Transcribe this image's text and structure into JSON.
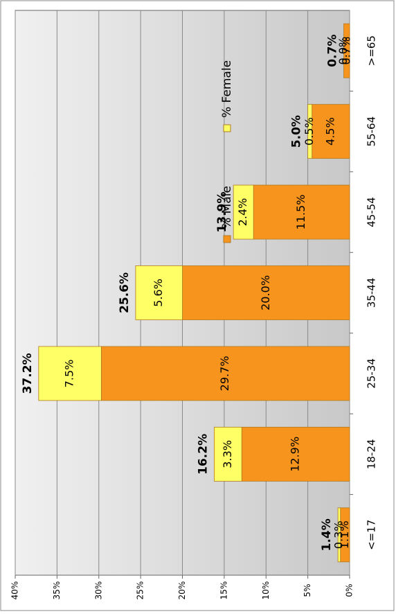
{
  "chart_data": {
    "type": "bar",
    "orientation": "horizontal",
    "stacked": true,
    "categories": [
      "<=17",
      "18-24",
      "25-34",
      "35-44",
      "45-54",
      "55-64",
      ">=65"
    ],
    "series": [
      {
        "name": "% Male",
        "color": "#f7941d",
        "values": [
          1.1,
          12.9,
          29.7,
          20.0,
          11.5,
          4.5,
          0.7
        ],
        "value_labels": [
          "1.1%",
          "12.9%",
          "29.7%",
          "20.0%",
          "11.5%",
          "4.5%",
          "0.7%"
        ]
      },
      {
        "name": "% Female",
        "color": "#ffff66",
        "values": [
          0.3,
          3.3,
          7.5,
          5.6,
          2.4,
          0.5,
          0.0
        ],
        "value_labels": [
          "0.3%",
          "3.3%",
          "7.5%",
          "5.6%",
          "2.4%",
          "0.5%",
          "0.0%"
        ]
      }
    ],
    "totals": {
      "values": [
        1.4,
        16.2,
        37.2,
        25.6,
        13.9,
        5.0,
        0.7
      ],
      "value_labels": [
        "1.4%",
        "16.2%",
        "37.2%",
        "25.6%",
        "13.9%",
        "5.0%",
        "0.7%"
      ]
    },
    "ylim": [
      0,
      40
    ],
    "yticks": [
      {
        "value": 0,
        "label": "0%"
      },
      {
        "value": 5,
        "label": "5%"
      },
      {
        "value": 10,
        "label": "10%"
      },
      {
        "value": 15,
        "label": "15%"
      },
      {
        "value": 20,
        "label": "20%"
      },
      {
        "value": 25,
        "label": "25%"
      },
      {
        "value": 30,
        "label": "30%"
      },
      {
        "value": 35,
        "label": "35%"
      },
      {
        "value": 40,
        "label": "40%"
      }
    ],
    "grid": true,
    "legend": "top"
  }
}
